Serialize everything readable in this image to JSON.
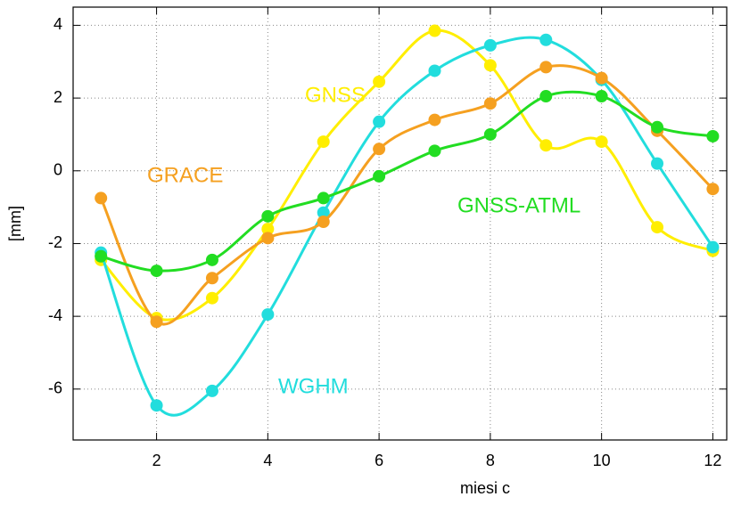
{
  "chart_data": {
    "type": "line",
    "x_label": "miesi c",
    "y_label": "[mm]",
    "x": [
      1,
      2,
      3,
      4,
      5,
      6,
      7,
      8,
      9,
      10,
      11,
      12
    ],
    "series": [
      {
        "name": "GNSS",
        "color": "#ffee00",
        "values": [
          -2.45,
          -4.05,
          -3.5,
          -1.6,
          0.8,
          2.45,
          3.85,
          2.9,
          0.7,
          0.8,
          -1.55,
          -2.2
        ]
      },
      {
        "name": "WGHM",
        "color": "#22dddd",
        "values": [
          -2.25,
          -6.45,
          -6.05,
          -3.95,
          -1.15,
          1.35,
          2.75,
          3.45,
          3.6,
          2.5,
          0.2,
          -2.1
        ]
      },
      {
        "name": "GRACE",
        "color": "#f5a020",
        "values": [
          -0.75,
          -4.15,
          -2.95,
          -1.85,
          -1.4,
          0.6,
          1.4,
          1.85,
          2.85,
          2.55,
          1.1,
          -0.5
        ]
      },
      {
        "name": "GNSS-ATML",
        "color": "#22dd22",
        "values": [
          -2.35,
          -2.75,
          -2.45,
          -1.25,
          -0.75,
          -0.15,
          0.55,
          1.0,
          2.05,
          2.05,
          1.2,
          0.95
        ]
      }
    ],
    "xlim": [
      0.5,
      12.25
    ],
    "ylim": [
      -7.4,
      4.5
    ],
    "xticks": [
      2,
      4,
      6,
      8,
      10,
      12
    ],
    "yticks": [
      -6,
      -4,
      -2,
      0,
      2,
      4
    ],
    "grid": true
  }
}
